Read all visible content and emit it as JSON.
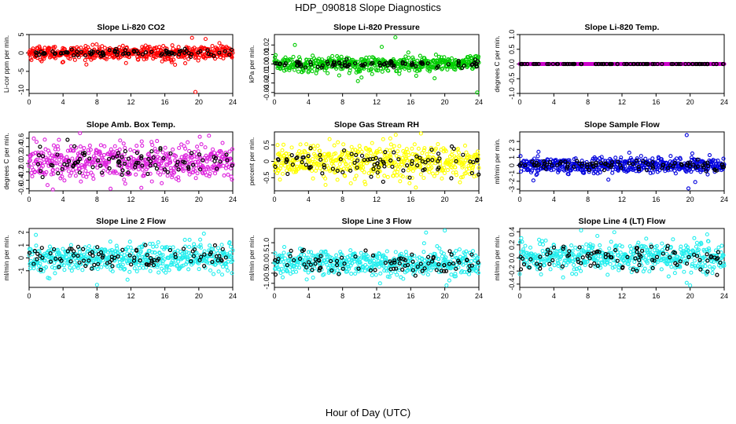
{
  "title": "HDP_090818  Slope Diagnostics",
  "xlabel": "Hour of Day (UTC)",
  "chart_data": [
    {
      "type": "scatter",
      "title": "Slope Li-820 CO2",
      "ylabel": "Li-cor ppm per min.",
      "xlim": [
        0,
        24
      ],
      "ylim": [
        -11,
        5
      ],
      "xticks": [
        0,
        4,
        8,
        12,
        16,
        20,
        24
      ],
      "yticks": [
        -10,
        -5,
        0,
        5
      ],
      "ytick_labels": [
        "-10",
        "-5",
        "0",
        "5"
      ],
      "color": "#ff0000",
      "center": 0,
      "spread": 0.9,
      "amp": 0,
      "highlight": {
        "color": "#000000",
        "spread": 0.4
      },
      "outliers": [
        [
          19.6,
          -10.6
        ],
        [
          17.2,
          -3.2
        ],
        [
          20.8,
          3.8
        ],
        [
          16.8,
          -2.5
        ],
        [
          19.2,
          4.1
        ],
        [
          18.4,
          -2.8
        ]
      ]
    },
    {
      "type": "scatter",
      "title": "Slope Li-820 Pressure",
      "ylabel": "kPa per min.",
      "xlim": [
        0,
        24
      ],
      "ylim": [
        -0.031,
        0.031
      ],
      "xticks": [
        0,
        4,
        8,
        12,
        16,
        20,
        24
      ],
      "yticks": [
        -0.03,
        -0.02,
        -0.01,
        0,
        0.01,
        0.02
      ],
      "ytick_labels": [
        "-0.03",
        "-0.02",
        "-0.01",
        "0.00",
        "0.01",
        "0.02"
      ],
      "color": "#00cc00",
      "center": 0,
      "spread": 0.004,
      "amp": 0,
      "highlight": {
        "color": "#000000",
        "spread": 0.002
      },
      "outliers": [
        [
          23.8,
          -0.03
        ],
        [
          14.2,
          0.028
        ],
        [
          7.6,
          -0.012
        ],
        [
          9.8,
          -0.018
        ],
        [
          12.6,
          0.018
        ],
        [
          18.8,
          -0.015
        ],
        [
          2.4,
          0.02
        ]
      ]
    },
    {
      "type": "scatter",
      "title": "Slope Li-820 Temp.",
      "ylabel": "degrees C per min.",
      "xlim": [
        0,
        24
      ],
      "ylim": [
        -1,
        1
      ],
      "xticks": [
        0,
        4,
        8,
        12,
        16,
        20,
        24
      ],
      "yticks": [
        -1,
        -0.5,
        0,
        0.5,
        1
      ],
      "ytick_labels": [
        "-1.0",
        "-0.5",
        "0.0",
        "0.5",
        "1.0"
      ],
      "color": "#cc00cc",
      "center": 0,
      "spread": 0,
      "amp": 0,
      "highlight": {
        "color": "#000000",
        "spread": 0
      },
      "outliers": []
    },
    {
      "type": "scatter",
      "title": "Slope Amb. Box Temp.",
      "ylabel": "degrees C per min.",
      "xlim": [
        0,
        24
      ],
      "ylim": [
        -0.65,
        0.75
      ],
      "xticks": [
        0,
        4,
        8,
        12,
        16,
        20,
        24
      ],
      "yticks": [
        -0.6,
        -0.4,
        -0.2,
        0,
        0.2,
        0.4,
        0.6
      ],
      "ytick_labels": [
        "-0.6",
        "-0.4",
        "-0.2",
        "0.0",
        "0.2",
        "0.4",
        "0.6"
      ],
      "color": "#dd22dd",
      "center": 0.05,
      "spread": 0.22,
      "amp": 0,
      "highlight": {
        "color": "#000000",
        "spread": 0.18
      },
      "outliers": [
        [
          2.8,
          -0.62
        ],
        [
          9.6,
          -0.6
        ],
        [
          6.0,
          0.72
        ],
        [
          21.2,
          0.66
        ]
      ]
    },
    {
      "type": "scatter",
      "title": "Slope Gas Stream RH",
      "ylabel": "percent per min.",
      "xlim": [
        0,
        24
      ],
      "ylim": [
        -0.9,
        0.9
      ],
      "xticks": [
        0,
        4,
        8,
        12,
        16,
        20,
        24
      ],
      "yticks": [
        -0.5,
        0,
        0.5
      ],
      "ytick_labels": [
        "-0.5",
        "0",
        "0.5"
      ],
      "color": "#ffff00",
      "center": 0,
      "spread": 0.25,
      "amp": 0,
      "highlight": {
        "color": "#000000",
        "spread": 0.2
      },
      "outliers": [
        [
          17.2,
          0.85
        ],
        [
          16.6,
          -0.8
        ],
        [
          6.0,
          -0.72
        ],
        [
          13.6,
          0.7
        ]
      ]
    },
    {
      "type": "scatter",
      "title": "Slope Sample Flow",
      "ylabel": "ml/min per min.",
      "xlim": [
        0,
        24
      ],
      "ylim": [
        -3.2,
        4.2
      ],
      "xticks": [
        0,
        4,
        8,
        12,
        16,
        20,
        24
      ],
      "yticks": [
        -3,
        -2,
        -1,
        0,
        1,
        2,
        3
      ],
      "ytick_labels": [
        "-3",
        "-2",
        "-1",
        "0",
        "1",
        "2",
        "3"
      ],
      "color": "#0000dd",
      "center": 0,
      "spread": 0.5,
      "amp": 0,
      "highlight": {
        "color": "#000000",
        "spread": 0.3
      },
      "outliers": [
        [
          19.6,
          3.8
        ],
        [
          19.8,
          -2.9
        ],
        [
          1.6,
          -1.9
        ],
        [
          20.6,
          -2.1
        ],
        [
          10.4,
          -1.8
        ],
        [
          2.2,
          1.7
        ]
      ]
    },
    {
      "type": "scatter",
      "title": "Slope Line 2 Flow",
      "ylabel": "ml/min per min.",
      "xlim": [
        0,
        24
      ],
      "ylim": [
        -2.3,
        2.3
      ],
      "xticks": [
        0,
        4,
        8,
        12,
        16,
        20,
        24
      ],
      "yticks": [
        -1,
        0,
        1,
        2
      ],
      "ytick_labels": [
        "-1",
        "0",
        "1",
        "2"
      ],
      "color": "#22eeee",
      "center": 0,
      "spread": 0.55,
      "amp": 0,
      "highlight": {
        "color": "#000000",
        "spread": 0.45
      },
      "outliers": [
        [
          8.0,
          -2.1
        ],
        [
          0.8,
          1.8
        ],
        [
          20.6,
          1.9
        ],
        [
          11.6,
          -1.7
        ],
        [
          2.4,
          -1.6
        ]
      ]
    },
    {
      "type": "scatter",
      "title": "Slope Line 3 Flow",
      "ylabel": "ml/min per min.",
      "xlim": [
        0,
        24
      ],
      "ylim": [
        -1.2,
        1.7
      ],
      "xticks": [
        0,
        4,
        8,
        12,
        16,
        20,
        24
      ],
      "yticks": [
        -1,
        -0.5,
        0,
        0.5,
        1
      ],
      "ytick_labels": [
        "-1.0",
        "-0.5",
        "0.0",
        "0.5",
        "1.0"
      ],
      "color": "#22eeee",
      "center": 0,
      "spread": 0.32,
      "amp": 0,
      "highlight": {
        "color": "#000000",
        "spread": 0.28
      },
      "outliers": [
        [
          20.0,
          1.6
        ],
        [
          17.8,
          1.5
        ],
        [
          20.2,
          -1.1
        ],
        [
          12.4,
          -1.0
        ]
      ]
    },
    {
      "type": "scatter",
      "title": "Slope Line 4 (LT) Flow",
      "ylabel": "ml/min per min.",
      "xlim": [
        0,
        24
      ],
      "ylim": [
        -0.45,
        0.45
      ],
      "xticks": [
        0,
        4,
        8,
        12,
        16,
        20,
        24
      ],
      "yticks": [
        -0.4,
        -0.2,
        0,
        0.2,
        0.4
      ],
      "ytick_labels": [
        "-0.4",
        "-0.2",
        "0.0",
        "0.2",
        "0.4"
      ],
      "color": "#22eeee",
      "center": 0.02,
      "spread": 0.11,
      "amp": 0,
      "highlight": {
        "color": "#000000",
        "spread": 0.1
      },
      "outliers": [
        [
          7.2,
          0.42
        ],
        [
          20.0,
          -0.42
        ],
        [
          19.6,
          -0.38
        ],
        [
          22.0,
          0.36
        ]
      ]
    }
  ]
}
